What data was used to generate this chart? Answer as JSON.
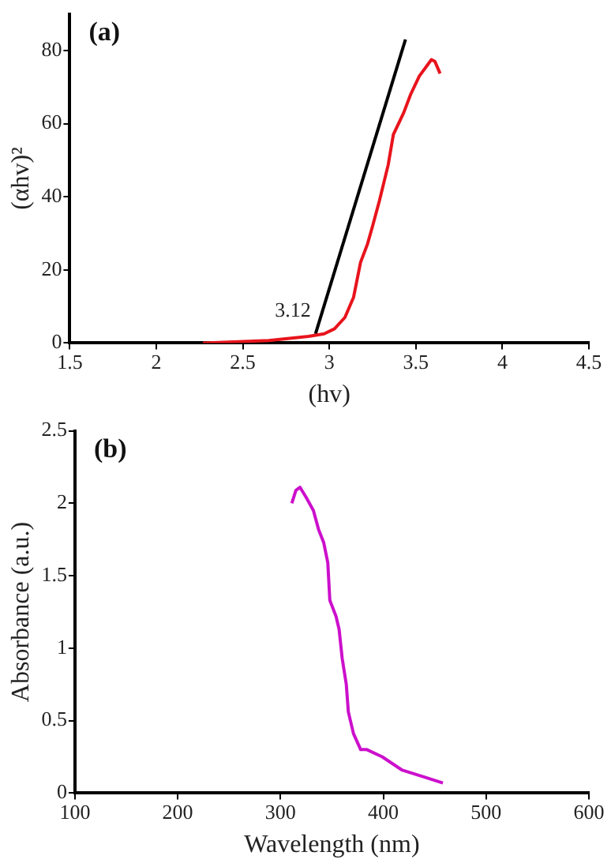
{
  "chart_data": [
    {
      "type": "line",
      "title": "(a)",
      "xlabel": "(hv)",
      "ylabel": "(αhv)²",
      "xlim": [
        1.5,
        4.5
      ],
      "xticks": [
        1.5,
        2,
        2.5,
        3,
        3.5,
        4,
        4.5
      ],
      "ylim": [
        0,
        90
      ],
      "yticks": [
        0,
        20,
        40,
        60,
        80
      ],
      "grid": false,
      "legend": false,
      "marker": "none",
      "line_style": "solid",
      "annotations": [
        {
          "text": "3.12",
          "x": 2.92,
          "y": 2.5
        }
      ],
      "series": [
        {
          "color": "#e8141c",
          "x": [
            2.27,
            2.65,
            2.88,
            2.97,
            3.03,
            3.09,
            3.14,
            3.18,
            3.22,
            3.25,
            3.29,
            3.34,
            3.37,
            3.43,
            3.47,
            3.52,
            3.59,
            3.61,
            3.64
          ],
          "values": [
            0,
            0.7,
            1.8,
            2.5,
            3.9,
            7,
            12.5,
            22,
            27,
            32,
            39,
            48.7,
            57,
            63,
            68,
            73,
            77.5,
            77,
            73.7
          ]
        },
        {
          "color": "#000000",
          "x": [
            2.92,
            3.44
          ],
          "values": [
            2.5,
            83
          ]
        }
      ]
    },
    {
      "type": "line",
      "title": "(b)",
      "xlabel": "Wavelength (nm)",
      "ylabel": "Absorbance (a.u.)",
      "xlim": [
        100,
        600
      ],
      "xticks": [
        100,
        200,
        300,
        400,
        500,
        600
      ],
      "ylim": [
        0,
        2.5
      ],
      "yticks": [
        0,
        0.5,
        1,
        1.5,
        2,
        2.5
      ],
      "grid": false,
      "legend": false,
      "marker": "none",
      "line_style": "solid",
      "series": [
        {
          "color": "#cc10cc",
          "x": [
            311,
            315,
            319,
            325,
            332,
            337,
            342,
            346,
            348,
            354,
            357,
            360,
            364,
            366,
            371,
            378,
            384,
            399,
            418,
            440,
            458
          ],
          "values": [
            2.0,
            2.09,
            2.11,
            2.04,
            1.95,
            1.82,
            1.73,
            1.59,
            1.33,
            1.22,
            1.13,
            0.93,
            0.75,
            0.56,
            0.41,
            0.3,
            0.3,
            0.25,
            0.16,
            0.11,
            0.07
          ]
        }
      ]
    }
  ]
}
